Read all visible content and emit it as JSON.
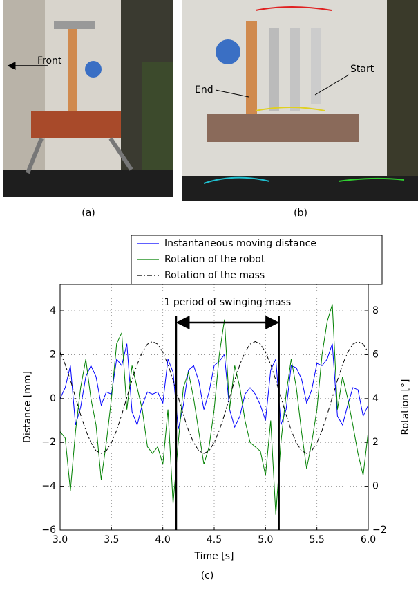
{
  "figure": {
    "panels": [
      {
        "label": "(a)",
        "annotations": [
          "Front"
        ]
      },
      {
        "label": "(b)",
        "annotations": [
          "End",
          "Start"
        ]
      }
    ]
  },
  "chart_data": {
    "type": "line",
    "label": "(c)",
    "xlabel": "Time [s]",
    "ylabel": "Distance [mm]",
    "y2label": "Rotation [°]",
    "x": [
      3.0,
      3.05,
      3.1,
      3.15,
      3.2,
      3.25,
      3.3,
      3.35,
      3.4,
      3.45,
      3.5,
      3.55,
      3.6,
      3.65,
      3.7,
      3.75,
      3.8,
      3.85,
      3.9,
      3.95,
      4.0,
      4.05,
      4.1,
      4.15,
      4.2,
      4.25,
      4.3,
      4.35,
      4.4,
      4.45,
      4.5,
      4.55,
      4.6,
      4.65,
      4.7,
      4.75,
      4.8,
      4.85,
      4.9,
      4.95,
      5.0,
      5.05,
      5.1,
      5.15,
      5.2,
      5.25,
      5.3,
      5.35,
      5.4,
      5.45,
      5.5,
      5.55,
      5.6,
      5.65,
      5.7,
      5.75,
      5.8,
      5.85,
      5.9,
      5.95,
      6.0
    ],
    "series": [
      {
        "name": "Instantaneous moving distance",
        "color": "#0000ff",
        "style": "solid",
        "axis": "y",
        "values": [
          0,
          0.5,
          1.5,
          -1.2,
          -0.4,
          1.0,
          1.5,
          1.0,
          -0.3,
          0.3,
          0.2,
          1.8,
          1.5,
          2.5,
          -0.6,
          -1.2,
          -0.3,
          0.3,
          0.2,
          0.3,
          -0.2,
          1.8,
          1.2,
          -1.4,
          -0.3,
          1.3,
          1.5,
          0.8,
          -0.5,
          0.3,
          1.5,
          1.7,
          2.0,
          -0.5,
          -1.3,
          -0.8,
          0.2,
          0.5,
          0.2,
          -0.3,
          -1.0,
          1.3,
          1.8,
          -1.2,
          -0.5,
          1.5,
          1.4,
          0.9,
          -0.2,
          0.4,
          1.6,
          1.5,
          1.8,
          2.5,
          -0.8,
          -1.2,
          -0.3,
          0.5,
          0.4,
          -0.8,
          -0.3
        ]
      },
      {
        "name": "Rotation of the robot",
        "color": "#008000",
        "style": "solid",
        "axis": "y2",
        "values": [
          2.5,
          2.2,
          -0.2,
          2.5,
          4.5,
          5.8,
          4.0,
          2.8,
          0.3,
          2.0,
          4.0,
          6.5,
          7.0,
          3.5,
          5.5,
          4.5,
          3.5,
          1.8,
          1.5,
          1.8,
          1.0,
          3.5,
          -0.8,
          2.0,
          4.5,
          5.2,
          4.0,
          2.5,
          1.0,
          1.8,
          3.5,
          6.0,
          7.6,
          3.5,
          5.5,
          4.5,
          3.0,
          2.0,
          1.8,
          1.6,
          0.5,
          3.0,
          -1.3,
          2.0,
          4.2,
          5.8,
          4.5,
          2.5,
          0.8,
          2.0,
          3.5,
          6.0,
          7.5,
          8.3,
          3.5,
          5.0,
          4.0,
          2.8,
          1.5,
          0.5,
          2.5
        ]
      },
      {
        "name": "Rotation of the mass",
        "color": "#000000",
        "style": "dashdot",
        "axis": "y2",
        "values": [
          6.11,
          5.55,
          4.84,
          4.05,
          3.26,
          2.55,
          1.99,
          1.62,
          1.5,
          1.62,
          1.99,
          2.55,
          3.26,
          4.05,
          4.84,
          5.55,
          6.11,
          6.48,
          6.6,
          6.48,
          6.11,
          5.55,
          4.84,
          4.05,
          3.26,
          2.55,
          1.99,
          1.62,
          1.5,
          1.62,
          1.99,
          2.55,
          3.26,
          4.05,
          4.84,
          5.55,
          6.11,
          6.48,
          6.6,
          6.48,
          6.11,
          5.55,
          4.84,
          4.05,
          3.26,
          2.55,
          1.99,
          1.62,
          1.5,
          1.62,
          1.99,
          2.55,
          3.26,
          4.05,
          4.84,
          5.55,
          6.11,
          6.48,
          6.6,
          6.48,
          6.11
        ]
      }
    ],
    "xlim": [
      3.0,
      6.0
    ],
    "ylim": [
      -6,
      5.2
    ],
    "y2lim": [
      -2,
      9.2
    ],
    "xticks": [
      {
        "value": 3.0,
        "label": "3.0"
      },
      3.5,
      {
        "value": 4.0,
        "label": "4.0"
      },
      4.5,
      {
        "value": 5.0,
        "label": "5.0"
      },
      5.5,
      {
        "value": 6.0,
        "label": "6.0"
      }
    ],
    "yticks": [
      {
        "value": -6,
        "label": "−6"
      },
      {
        "value": -4,
        "label": "−4"
      },
      {
        "value": -2,
        "label": "−2"
      },
      0,
      2,
      4
    ],
    "y2ticks": [
      {
        "value": -2,
        "label": "−2"
      },
      0,
      2,
      4,
      6,
      8
    ],
    "grid": true,
    "legend": "top",
    "annotation": {
      "text": "1 period of swinging mass",
      "x": [
        4.13,
        5.13
      ]
    }
  }
}
